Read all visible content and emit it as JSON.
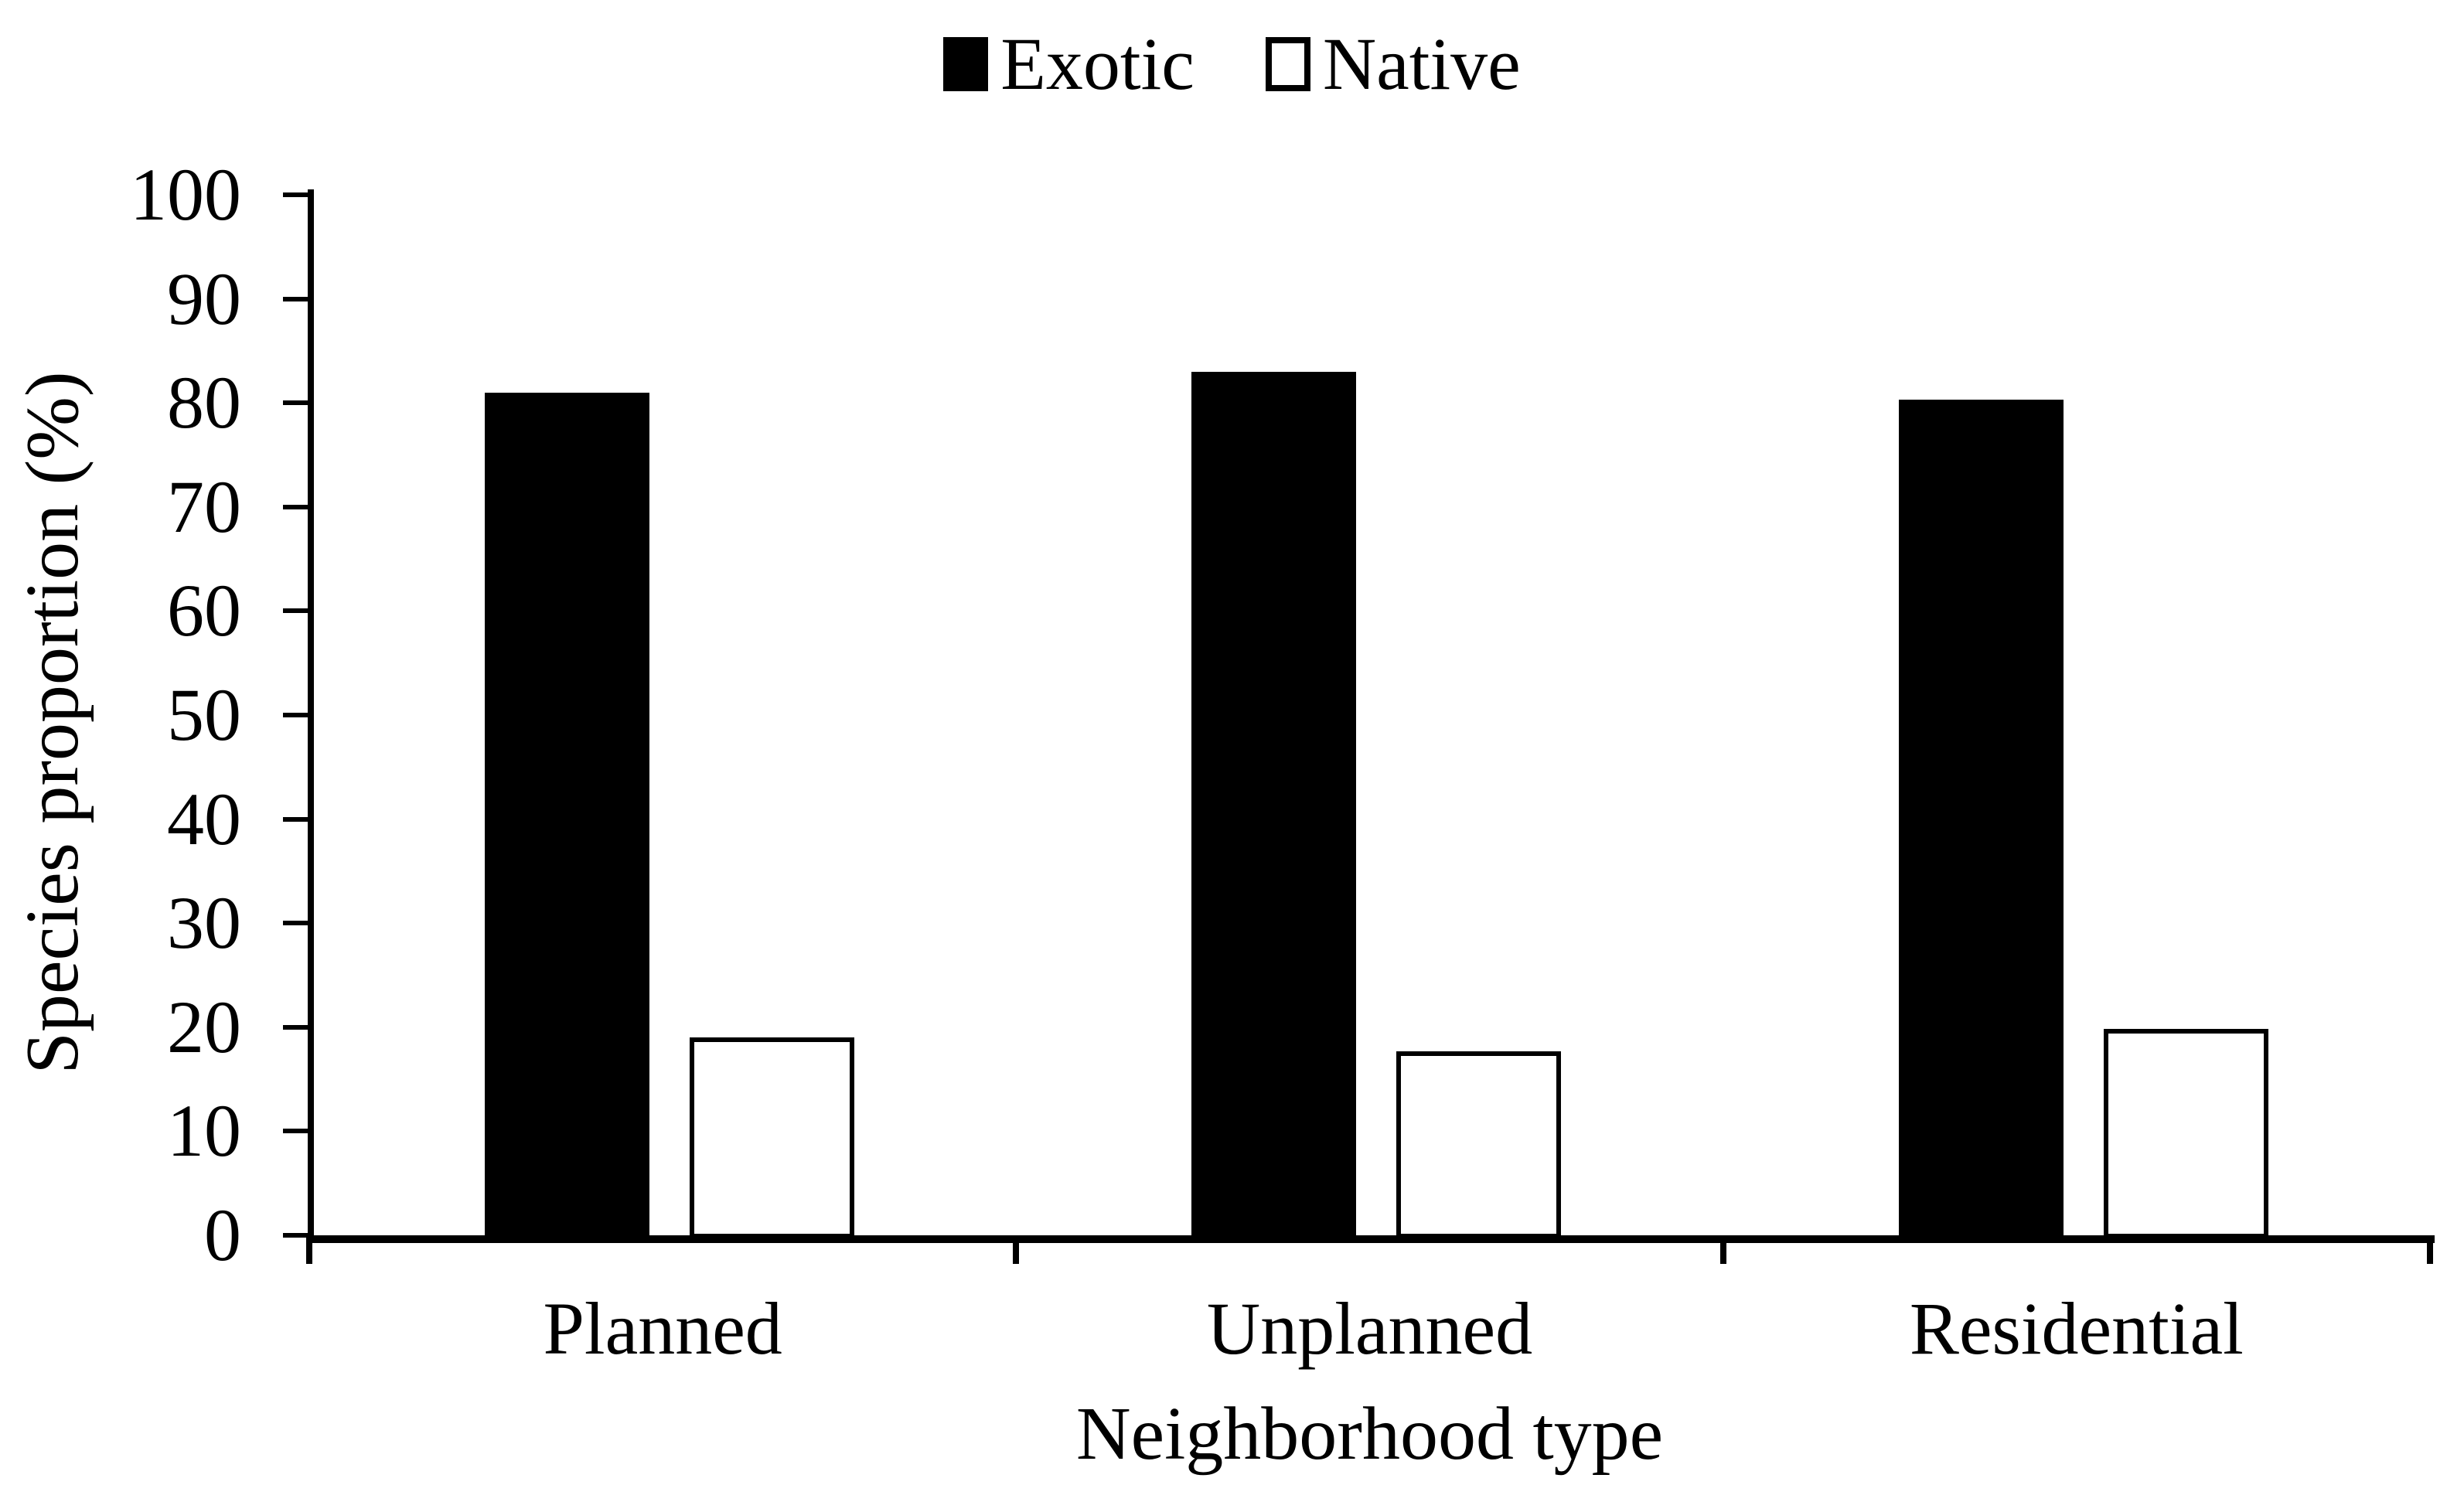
{
  "chart_data": {
    "type": "bar",
    "title": "",
    "categories": [
      "Planned",
      "Unplanned",
      "Residential"
    ],
    "series": [
      {
        "name": "Exotic",
        "values": [
          81,
          83,
          80.3
        ],
        "fill": "#000000",
        "border": "#000000"
      },
      {
        "name": "Native",
        "values": [
          19,
          17.7,
          19.8
        ],
        "fill": "#ffffff",
        "border": "#000000"
      }
    ],
    "xlabel": "Neighborhood type",
    "ylabel": "Species proportion (%)",
    "ylim": [
      0,
      100
    ],
    "ytick_step": 10,
    "ytick_labels": [
      "0",
      "10",
      "20",
      "30",
      "40",
      "50",
      "60",
      "70",
      "80",
      "90",
      "100"
    ],
    "legend_position": "top-center",
    "legend_items": [
      "Exotic",
      "Native"
    ],
    "grid": false,
    "axis_color": "#000000",
    "background_color": "#ffffff"
  }
}
